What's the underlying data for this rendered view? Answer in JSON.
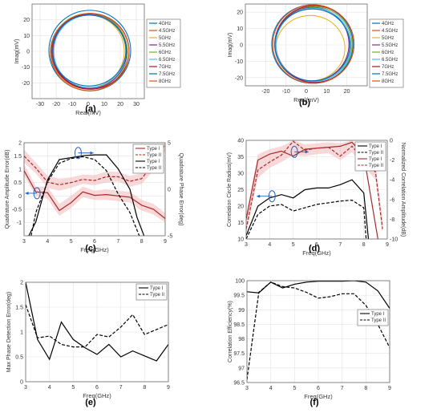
{
  "panel_labels": [
    "(a)",
    "(b)",
    "(c)",
    "(d)",
    "(e)",
    "(f)"
  ],
  "chart_data": [
    {
      "id": "a",
      "type": "scatter",
      "xlabel": "Real(mV)",
      "ylabel": "Imag(mV)",
      "xlim": [
        -35,
        35
      ],
      "ylim": [
        -30,
        30
      ],
      "xticks": [
        -30,
        -20,
        -10,
        0,
        10,
        20,
        30
      ],
      "yticks": [
        -20,
        -10,
        0,
        10,
        20
      ],
      "grid": true,
      "legend": "top-right",
      "series": [
        {
          "name": "4GHz",
          "color": "#0072BD",
          "cx": 1.0,
          "cy": 0.5,
          "rx": 25.5,
          "ry": 25.5
        },
        {
          "name": "4.5GHz",
          "color": "#D95319",
          "cx": 0.5,
          "cy": 0.0,
          "rx": 23.5,
          "ry": 24.0
        },
        {
          "name": "5GHz",
          "color": "#EDB120",
          "cx": 0.5,
          "cy": 0.0,
          "rx": 22.0,
          "ry": 23.0
        },
        {
          "name": "5.5GHz",
          "color": "#7E2F8E",
          "cx": 1.0,
          "cy": 0.0,
          "rx": 23.0,
          "ry": 23.5
        },
        {
          "name": "6GHz",
          "color": "#77AC30",
          "cx": 0.5,
          "cy": -0.5,
          "rx": 24.0,
          "ry": 24.5
        },
        {
          "name": "6.5GHz",
          "color": "#4DBEEE",
          "cx": 1.0,
          "cy": 0.0,
          "rx": 22.5,
          "ry": 23.0
        },
        {
          "name": "7GHz",
          "color": "#A2142F",
          "cx": 1.5,
          "cy": 0.0,
          "rx": 24.0,
          "ry": 24.0
        },
        {
          "name": "7.5GHz",
          "color": "#0072BD",
          "cx": 0.5,
          "cy": 0.5,
          "rx": 23.0,
          "ry": 22.5
        },
        {
          "name": "8GHz",
          "color": "#D95319",
          "cx": 1.0,
          "cy": -0.5,
          "rx": 24.5,
          "ry": 24.5
        }
      ]
    },
    {
      "id": "b",
      "type": "scatter",
      "xlabel": "Real(mV)",
      "ylabel": "Imag(mV)",
      "xlim": [
        -30,
        30
      ],
      "ylim": [
        -25,
        25
      ],
      "xticks": [
        -20,
        -10,
        0,
        10,
        20
      ],
      "yticks": [
        -20,
        -10,
        0,
        10,
        20
      ],
      "grid": true,
      "legend": "top-right",
      "series": [
        {
          "name": "4GHz",
          "color": "#0072BD",
          "cx": 3.0,
          "cy": 0.5,
          "rx": 20.0,
          "ry": 24.0
        },
        {
          "name": "4.5GHz",
          "color": "#D95319",
          "cx": 3.0,
          "cy": 0.0,
          "rx": 18.5,
          "ry": 22.0
        },
        {
          "name": "5GHz",
          "color": "#EDB120",
          "cx": 2.0,
          "cy": -2.0,
          "rx": 17.0,
          "ry": 20.0
        },
        {
          "name": "5.5GHz",
          "color": "#7E2F8E",
          "cx": 3.0,
          "cy": 0.5,
          "rx": 18.0,
          "ry": 22.5
        },
        {
          "name": "6GHz",
          "color": "#77AC30",
          "cx": 3.5,
          "cy": 0.5,
          "rx": 19.0,
          "ry": 23.0
        },
        {
          "name": "6.5GHz",
          "color": "#4DBEEE",
          "cx": 3.5,
          "cy": 0.0,
          "rx": 18.5,
          "ry": 22.5
        },
        {
          "name": "7GHz",
          "color": "#A2142F",
          "cx": 4.0,
          "cy": 0.5,
          "rx": 19.5,
          "ry": 23.5
        },
        {
          "name": "7.5GHz",
          "color": "#0072BD",
          "cx": 3.0,
          "cy": 0.0,
          "rx": 18.5,
          "ry": 22.0
        },
        {
          "name": "8GHz",
          "color": "#D95319",
          "cx": 3.5,
          "cy": 0.5,
          "rx": 20.0,
          "ry": 24.0
        }
      ]
    },
    {
      "id": "c",
      "type": "line",
      "xlabel": "Freq(GHz)",
      "ylabel": "Quadrature Amplitude Error(dB)",
      "y2label": "Quadrature Phase Error(deg)",
      "xlim": [
        3,
        9
      ],
      "ylim": [
        -1.5,
        2
      ],
      "y2lim": [
        -5,
        5
      ],
      "xticks": [
        3,
        4,
        5,
        6,
        7,
        8,
        9
      ],
      "yticks": [
        -1,
        -0.5,
        0,
        0.5,
        1,
        1.5,
        2
      ],
      "y2ticks": [
        -5,
        0,
        5
      ],
      "grid": true,
      "legend": "top-right",
      "series": [
        {
          "name": "Type I",
          "axis": "left",
          "color": "#A52A2A",
          "style": "solid",
          "x": [
            3,
            3.5,
            4,
            4.5,
            5,
            5.5,
            6,
            6.5,
            7,
            7.5,
            8,
            8.5,
            9
          ],
          "y": [
            0.95,
            0.15,
            0.12,
            -0.55,
            -0.25,
            0.15,
            0.02,
            0.05,
            0.0,
            -0.05,
            -0.35,
            -0.5,
            -0.85
          ]
        },
        {
          "name": "Type II",
          "axis": "left",
          "color": "#A52A2A",
          "style": "dashed",
          "x": [
            3,
            3.5,
            4,
            4.5,
            5,
            5.5,
            6,
            6.5,
            7,
            7.5,
            8,
            8.5,
            9
          ],
          "y": [
            1.5,
            1.05,
            0.52,
            0.42,
            0.5,
            0.62,
            0.58,
            0.72,
            0.72,
            0.55,
            0.65,
            1.2,
            1.95
          ]
        },
        {
          "name": "Type I",
          "axis": "right",
          "color": "#000000",
          "style": "solid",
          "x": [
            3.2,
            3.5,
            4,
            4.5,
            5,
            5.5,
            6,
            6.5,
            7,
            7.5,
            7.8,
            8.1
          ],
          "y": [
            -5,
            -3.5,
            1,
            3.2,
            3.4,
            3.6,
            3.7,
            3.7,
            2.2,
            0,
            -3,
            -5
          ]
        },
        {
          "name": "Type II",
          "axis": "right",
          "color": "#000000",
          "style": "dashed",
          "x": [
            3.3,
            3.5,
            4,
            4.5,
            5,
            5.5,
            6,
            6.5,
            7,
            7.5,
            7.9
          ],
          "y": [
            -5,
            -2.5,
            0.8,
            2.8,
            3.3,
            3.5,
            3.2,
            2.0,
            -0.5,
            -2.5,
            -5
          ]
        }
      ],
      "bands": [
        {
          "axis": "left",
          "color": "#F2B8B8",
          "x": [
            3,
            3.5,
            4,
            4.5,
            5,
            5.5,
            6,
            6.5,
            7,
            7.5,
            8,
            8.5,
            9
          ],
          "lo": [
            0.75,
            0.0,
            -0.1,
            -0.75,
            -0.45,
            -0.05,
            -0.15,
            -0.15,
            -0.2,
            -0.25,
            -0.55,
            -0.7,
            -1.0
          ],
          "hi": [
            1.2,
            0.35,
            0.35,
            -0.3,
            0.0,
            0.35,
            0.2,
            0.25,
            0.2,
            0.15,
            -0.15,
            -0.3,
            -0.65
          ]
        },
        {
          "axis": "left",
          "color": "#F2B8B8",
          "x": [
            3,
            3.5,
            4,
            4.5,
            5,
            5.5,
            6,
            6.5,
            7,
            7.5,
            8,
            8.5,
            9
          ],
          "lo": [
            1.25,
            0.85,
            0.3,
            0.2,
            0.3,
            0.45,
            0.4,
            0.5,
            0.55,
            0.35,
            0.45,
            0.95,
            1.7
          ],
          "hi": [
            1.75,
            1.25,
            0.75,
            0.65,
            0.7,
            0.8,
            0.78,
            0.92,
            0.9,
            0.75,
            0.85,
            1.45,
            2.0
          ]
        }
      ],
      "annotations": [
        {
          "cx": 3.55,
          "cy": 0.1,
          "axis": "left",
          "arrow_to": 3.05
        },
        {
          "cx": 5.3,
          "cy": 3.9,
          "axis": "right",
          "arrow_to": 5.95
        }
      ]
    },
    {
      "id": "d",
      "type": "line",
      "xlabel": "Freq(GHz)",
      "ylabel": "Correlation Circle Radius(mV)",
      "y2label": "Normalized Correlation Amplitude(dB)",
      "xlim": [
        3,
        9
      ],
      "ylim": [
        10,
        40
      ],
      "y2lim": [
        -10,
        0
      ],
      "xticks": [
        3,
        4,
        5,
        6,
        7,
        8,
        9
      ],
      "yticks": [
        10,
        15,
        20,
        25,
        30,
        35,
        40
      ],
      "y2ticks": [
        -10,
        -8,
        -6,
        -4,
        -2,
        0
      ],
      "grid": true,
      "legend": "top-right",
      "series": [
        {
          "name": "Type I",
          "axis": "left",
          "color": "#000000",
          "style": "solid",
          "x": [
            3,
            3.5,
            4,
            4.5,
            5,
            5.5,
            6,
            6.5,
            7,
            7.5,
            8,
            8.2
          ],
          "y": [
            11,
            20,
            22.5,
            23.5,
            22.5,
            25,
            25.5,
            25.5,
            26.5,
            28,
            24,
            10
          ]
        },
        {
          "name": "Type II",
          "axis": "left",
          "color": "#000000",
          "style": "dashed",
          "x": [
            3,
            3.5,
            4,
            4.5,
            5,
            5.5,
            6,
            6.5,
            7,
            7.5,
            8,
            8.1
          ],
          "y": [
            10,
            17.5,
            20,
            20.5,
            18.5,
            19.5,
            20.5,
            21,
            21.5,
            21.8,
            19.5,
            10
          ]
        },
        {
          "name": "Type I",
          "axis": "right",
          "color": "#A52A2A",
          "style": "solid",
          "x": [
            3,
            3.5,
            4,
            4.5,
            5,
            5.5,
            6,
            6.5,
            7,
            7.5,
            8,
            8.6
          ],
          "y": [
            -8,
            -2,
            -1.4,
            -1.1,
            -1.6,
            -0.9,
            -0.8,
            -0.7,
            -0.6,
            -0.2,
            -1.5,
            -10
          ]
        },
        {
          "name": "Type II",
          "axis": "right",
          "color": "#A52A2A",
          "style": "dashed",
          "x": [
            3,
            3.5,
            4,
            4.5,
            5,
            5.5,
            6,
            6.5,
            7,
            7.5,
            8,
            8.5,
            8.8
          ],
          "y": [
            -9,
            -3,
            -2.2,
            -1.5,
            -0.1,
            -1.0,
            -0.8,
            -0.7,
            -1.6,
            -0.6,
            -2.0,
            -3.2,
            -9
          ]
        }
      ],
      "bands": [
        {
          "axis": "right",
          "color": "#F2B8B8",
          "x": [
            3,
            3.5,
            4,
            4.5,
            5,
            5.5,
            6,
            6.5,
            7,
            7.5,
            8,
            8.5,
            8.8
          ],
          "lo": [
            -9.5,
            -3.8,
            -2.8,
            -2.2,
            -1.5,
            -1.6,
            -1.4,
            -1.3,
            -2.0,
            -1.2,
            -2.6,
            -4.0,
            -9.5
          ],
          "hi": [
            -7.5,
            -1.4,
            -0.9,
            -0.6,
            0.0,
            -0.4,
            -0.3,
            -0.2,
            -0.3,
            0.0,
            -1.0,
            -2.4,
            -8.0
          ]
        }
      ],
      "annotations": [
        {
          "cx": 4.1,
          "cy": 23.0,
          "axis": "left",
          "arrow_to": 3.45
        },
        {
          "cx": 5.05,
          "cy": 36.5,
          "axis": "left",
          "arrow_to": 5.65
        }
      ]
    },
    {
      "id": "e",
      "type": "line",
      "xlabel": "Freq(GHz)",
      "ylabel": "Max Phase Detection Error(deg)",
      "xlim": [
        3,
        9
      ],
      "ylim": [
        0,
        2
      ],
      "xticks": [
        3,
        4,
        5,
        6,
        7,
        8,
        9
      ],
      "yticks": [
        0,
        0.5,
        1,
        1.5,
        2
      ],
      "grid": true,
      "legend": "top-right",
      "series": [
        {
          "name": "Type I",
          "color": "#000000",
          "style": "solid",
          "x": [
            3,
            3.5,
            4,
            4.5,
            5,
            5.5,
            6,
            6.5,
            7,
            7.5,
            8,
            8.5,
            9
          ],
          "y": [
            2.0,
            0.85,
            0.45,
            1.2,
            0.85,
            0.68,
            0.55,
            0.75,
            0.5,
            0.62,
            0.52,
            0.42,
            0.75
          ]
        },
        {
          "name": "Type II",
          "color": "#000000",
          "style": "dashed",
          "x": [
            3,
            3.5,
            4,
            4.5,
            5,
            5.5,
            6,
            6.5,
            7,
            7.5,
            8,
            8.5,
            9
          ],
          "y": [
            1.55,
            0.88,
            0.92,
            0.75,
            0.7,
            0.7,
            0.95,
            0.9,
            1.1,
            1.35,
            0.95,
            1.05,
            1.15
          ]
        }
      ]
    },
    {
      "id": "f",
      "type": "line",
      "xlabel": "Freq(GHz)",
      "ylabel": "Correlation Efficiency(%)",
      "xlim": [
        3,
        9
      ],
      "ylim": [
        96.5,
        100
      ],
      "xticks": [
        3,
        4,
        5,
        6,
        7,
        8,
        9
      ],
      "yticks": [
        96.5,
        97,
        97.5,
        98,
        98.5,
        99,
        99.5,
        100
      ],
      "grid": true,
      "legend": "right",
      "series": [
        {
          "name": "Type I",
          "color": "#000000",
          "style": "solid",
          "x": [
            3,
            3.5,
            4,
            4.5,
            5,
            5.5,
            6,
            6.5,
            7,
            7.5,
            8,
            8.5,
            9
          ],
          "y": [
            99.62,
            99.58,
            99.95,
            99.75,
            99.88,
            99.95,
            99.98,
            99.98,
            99.98,
            100,
            99.95,
            99.65,
            99.05
          ]
        },
        {
          "name": "Type II",
          "color": "#000000",
          "style": "dashed",
          "x": [
            3,
            3.5,
            4,
            4.5,
            5,
            5.5,
            6,
            6.5,
            7,
            7.5,
            8,
            8.5,
            9
          ],
          "y": [
            96.6,
            99.6,
            99.95,
            99.8,
            99.75,
            99.6,
            99.4,
            99.45,
            99.55,
            99.55,
            99.15,
            98.5,
            97.7
          ]
        }
      ]
    }
  ]
}
